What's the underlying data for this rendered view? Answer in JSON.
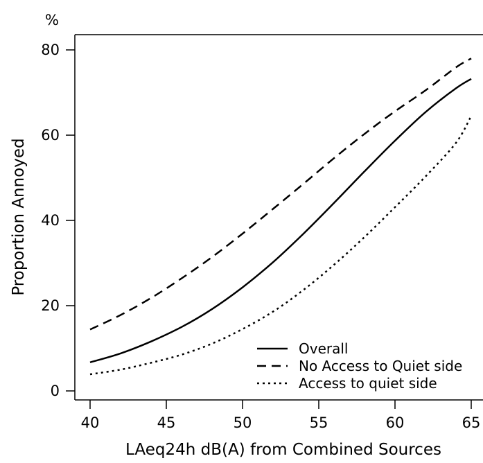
{
  "chart_data": {
    "type": "line",
    "title": "",
    "xlabel": "LAeq24h dB(A) from Combined Sources",
    "ylabel": "Proportion Annoyed",
    "yunit": "%",
    "xlim": [
      40,
      65
    ],
    "ylim": [
      0,
      80
    ],
    "xticks": [
      40,
      45,
      50,
      55,
      60,
      65
    ],
    "yticks": [
      0,
      20,
      40,
      60,
      80
    ],
    "grid": false,
    "legend_position": "bottom-right",
    "x": [
      40,
      42,
      44,
      46,
      48,
      50,
      52,
      54,
      56,
      58,
      60,
      62,
      64,
      65
    ],
    "series": [
      {
        "name": "Overall",
        "dash": "solid",
        "values": [
          6.7,
          8.8,
          11.6,
          15.0,
          19.2,
          24.3,
          30.2,
          36.9,
          44.1,
          51.5,
          58.7,
          65.4,
          71.0,
          73.2
        ]
      },
      {
        "name": "No Access to Quiet side",
        "dash": "dashed",
        "values": [
          14.4,
          17.8,
          21.8,
          26.4,
          31.4,
          36.9,
          42.7,
          48.6,
          54.6,
          60.3,
          65.6,
          70.5,
          75.9,
          78.0
        ]
      },
      {
        "name": "Access to quiet side",
        "dash": "dotted",
        "values": [
          3.9,
          5.0,
          6.6,
          8.5,
          11.1,
          14.5,
          18.6,
          23.7,
          29.6,
          36.1,
          43.1,
          50.3,
          58.2,
          64.5
        ]
      }
    ]
  }
}
